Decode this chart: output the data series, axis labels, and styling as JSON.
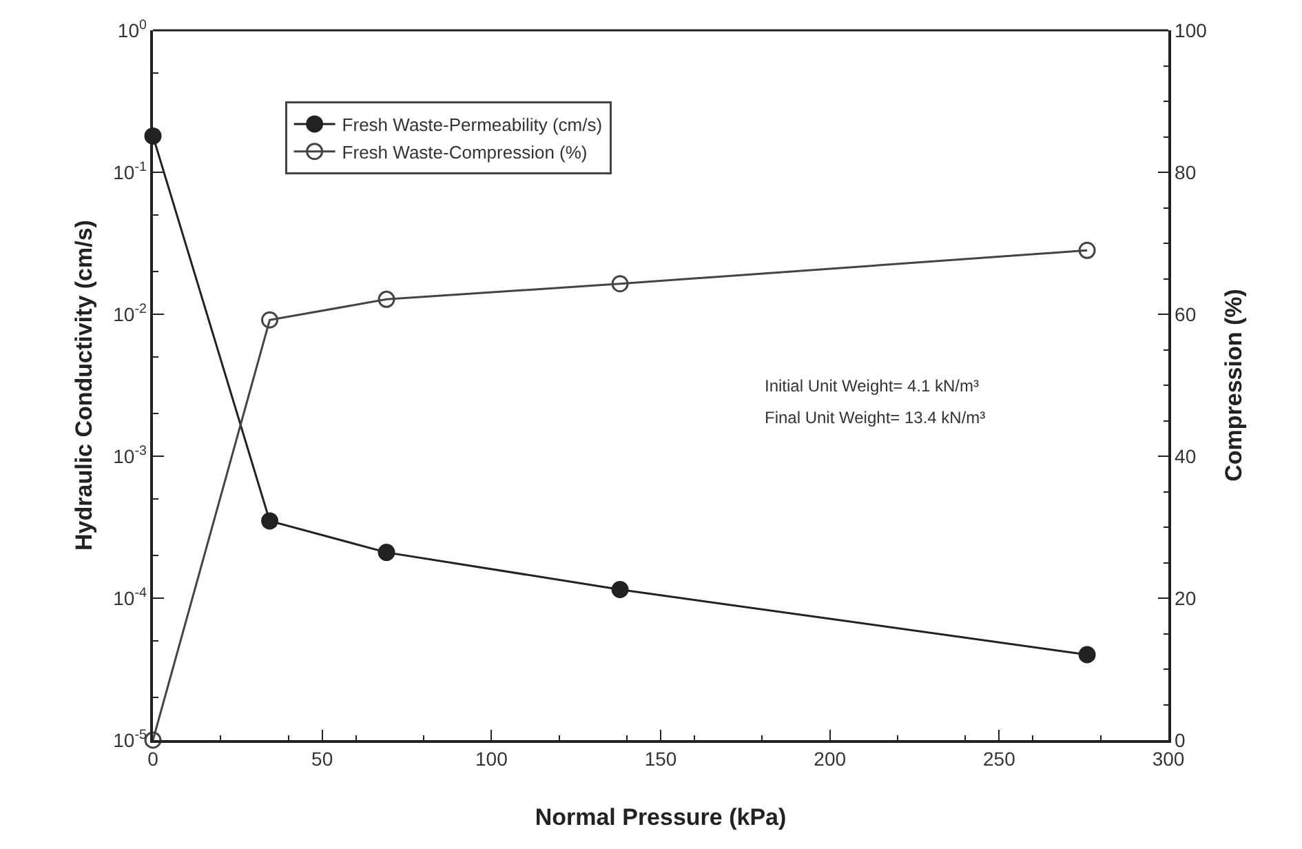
{
  "chart_data": {
    "type": "line",
    "xlabel": "Normal Pressure (kPa)",
    "ylabel": "Hydraulic Conductivity (cm/s)",
    "y2label": "Compression (%)",
    "x": [
      0,
      34.5,
      69,
      138,
      276
    ],
    "series": [
      {
        "name": "Fresh Waste-Permeability (cm/s)",
        "color": "#222222",
        "marker": "circle",
        "values": [
          0.18,
          0.00035,
          0.00021,
          0.000115,
          4e-05
        ]
      },
      {
        "name": "Fresh Waste-Compression (%)",
        "color": "#444444",
        "marker": "circle-open",
        "axis": "y2",
        "values": [
          0,
          59.2,
          62.1,
          64.3,
          69
        ]
      }
    ],
    "log": "y",
    "xlim": [
      0,
      300
    ],
    "xticks": [
      0,
      50,
      100,
      150,
      200,
      250,
      300
    ],
    "ylim": [
      1e-05,
      1
    ],
    "yticks": [
      {
        "value": 1e-05,
        "label": "10$^{-5}$"
      },
      {
        "value": 0.0001,
        "label": "10$^{-4}$"
      },
      {
        "value": 0.001,
        "label": "10$^{-3}$"
      },
      {
        "value": 0.01,
        "label": "10$^{-2}$"
      },
      {
        "value": 0.1,
        "label": "10$^{-1}$"
      },
      {
        "value": 1,
        "label": "10$^{0}$"
      }
    ],
    "y2lim": [
      0,
      100
    ],
    "y2ticks": [
      0,
      20,
      40,
      60,
      80,
      100
    ],
    "grid": false,
    "legend": "top left",
    "line_style": "solid",
    "annotations": [
      "Initial Unit Weight= 4.1 kN/m³",
      "Final Unit Weight= 13.4 kN/m³"
    ]
  }
}
